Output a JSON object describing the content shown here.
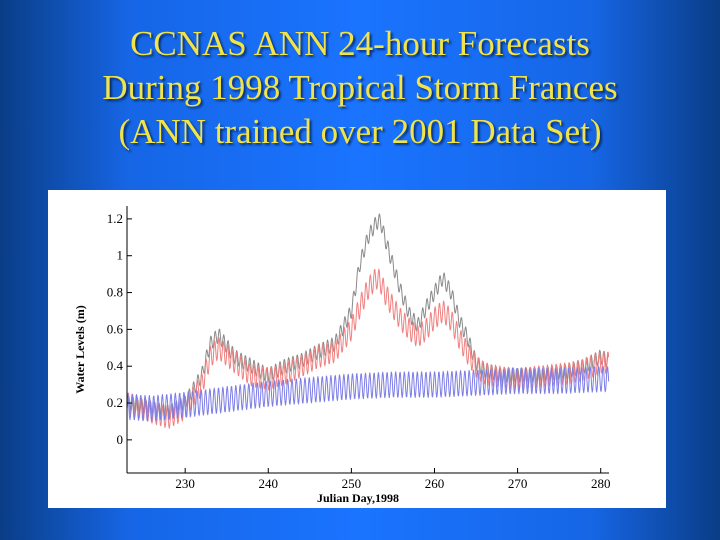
{
  "slide": {
    "title_lines": [
      "CCNAS ANN 24-hour Forecasts",
      "During 1998 Tropical Storm Frances",
      "(ANN trained over 2001 Data Set)"
    ],
    "title_color": "#f0e44a",
    "background_color": "#1a74ff"
  },
  "chart_data": {
    "type": "line",
    "title": "",
    "xlabel": "Julian Day,1998",
    "ylabel": "Water Levels (m)",
    "xlim": [
      223,
      281
    ],
    "ylim": [
      -0.18,
      1.27
    ],
    "x_ticks": [
      230,
      240,
      250,
      260,
      270,
      280
    ],
    "y_ticks": [
      0,
      0.2,
      0.4,
      0.6,
      0.8,
      1,
      1.2
    ],
    "y_tick_labels": [
      "0",
      "0.2",
      "0.4",
      "0.6",
      "0.8",
      "1",
      "1.2"
    ],
    "legend": "none",
    "grid": false,
    "series": [
      {
        "color": "#8a8a8a",
        "oscillation_amplitude": 0.04,
        "oscillation_period_days": 0.52,
        "x": [
          223,
          226,
          228,
          230,
          232,
          233,
          234,
          236,
          238,
          240,
          242,
          244,
          246,
          248,
          250,
          251,
          252,
          253,
          253.5,
          254,
          255,
          256,
          257,
          258,
          259,
          260,
          261,
          262,
          263,
          264,
          265,
          266,
          268,
          270,
          272,
          274,
          276,
          278,
          280,
          281
        ],
        "y": [
          0.2,
          0.17,
          0.15,
          0.2,
          0.35,
          0.52,
          0.57,
          0.45,
          0.4,
          0.35,
          0.4,
          0.43,
          0.48,
          0.52,
          0.7,
          0.95,
          1.1,
          1.18,
          1.19,
          1.1,
          0.95,
          0.8,
          0.68,
          0.62,
          0.72,
          0.8,
          0.88,
          0.8,
          0.65,
          0.55,
          0.42,
          0.38,
          0.35,
          0.35,
          0.35,
          0.36,
          0.37,
          0.4,
          0.45,
          0.43
        ]
      },
      {
        "color": "#f08080",
        "oscillation_amplitude": 0.06,
        "oscillation_period_days": 0.52,
        "x": [
          223,
          226,
          228,
          230,
          232,
          233,
          234,
          236,
          238,
          240,
          242,
          244,
          246,
          248,
          250,
          251,
          252,
          253,
          253.5,
          254,
          255,
          256,
          257,
          258,
          259,
          260,
          261,
          262,
          263,
          264,
          265,
          266,
          268,
          270,
          272,
          274,
          276,
          278,
          280,
          281
        ],
        "y": [
          0.2,
          0.15,
          0.12,
          0.17,
          0.3,
          0.45,
          0.5,
          0.42,
          0.35,
          0.33,
          0.36,
          0.4,
          0.45,
          0.48,
          0.6,
          0.72,
          0.82,
          0.88,
          0.86,
          0.8,
          0.72,
          0.65,
          0.6,
          0.56,
          0.6,
          0.66,
          0.7,
          0.65,
          0.55,
          0.47,
          0.4,
          0.36,
          0.34,
          0.33,
          0.34,
          0.35,
          0.36,
          0.38,
          0.42,
          0.42
        ]
      },
      {
        "color": "#7d7de8",
        "oscillation_amplitude": 0.07,
        "oscillation_period_days": 0.52,
        "x": [
          223,
          226,
          230,
          235,
          240,
          245,
          250,
          255,
          260,
          265,
          270,
          275,
          280,
          281
        ],
        "y": [
          0.18,
          0.17,
          0.19,
          0.22,
          0.25,
          0.27,
          0.29,
          0.3,
          0.3,
          0.31,
          0.32,
          0.32,
          0.33,
          0.33
        ]
      }
    ]
  }
}
